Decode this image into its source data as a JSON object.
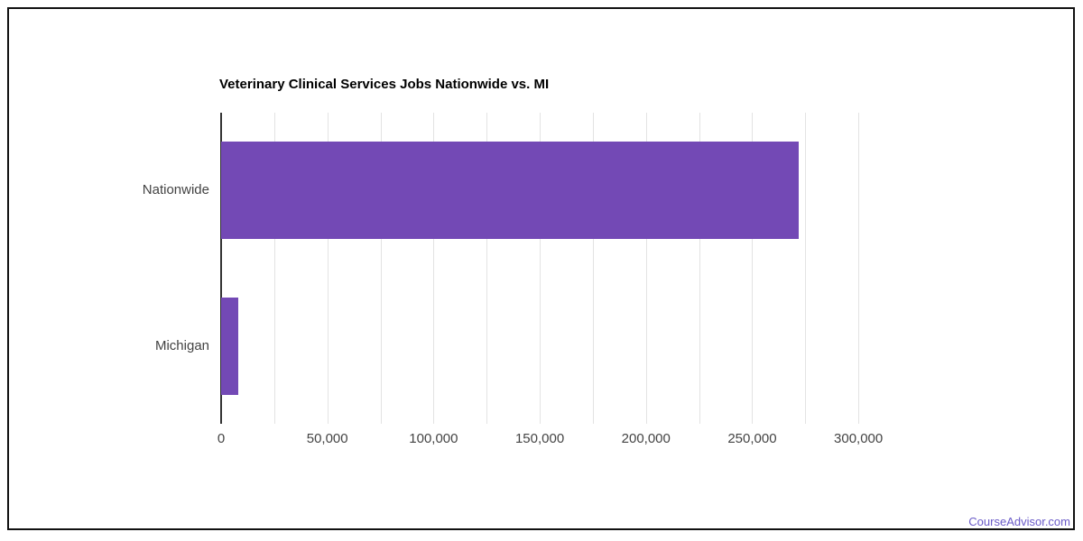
{
  "page": {
    "watermark": {
      "label": "CourseAdvisor.com",
      "color": "#6a5bc8"
    }
  },
  "chart_data": {
    "type": "bar",
    "orientation": "horizontal",
    "title": "Veterinary Clinical Services Jobs Nationwide vs. MI",
    "categories": [
      "Nationwide",
      "Michigan"
    ],
    "values": [
      272000,
      8000
    ],
    "xlabel": "",
    "ylabel": "",
    "xlim": [
      0,
      325000
    ],
    "x_ticks": [
      0,
      50000,
      100000,
      150000,
      200000,
      250000,
      300000
    ],
    "x_tick_labels": [
      "0",
      "50,000",
      "100,000",
      "150,000",
      "200,000",
      "250,000",
      "300,000"
    ],
    "minor_gridline_interval": 25000,
    "grid": true,
    "legend": "none",
    "bar_color": "#7349b5",
    "axis_line_color": "#333333",
    "gridline_color": "#e3e3e3"
  }
}
